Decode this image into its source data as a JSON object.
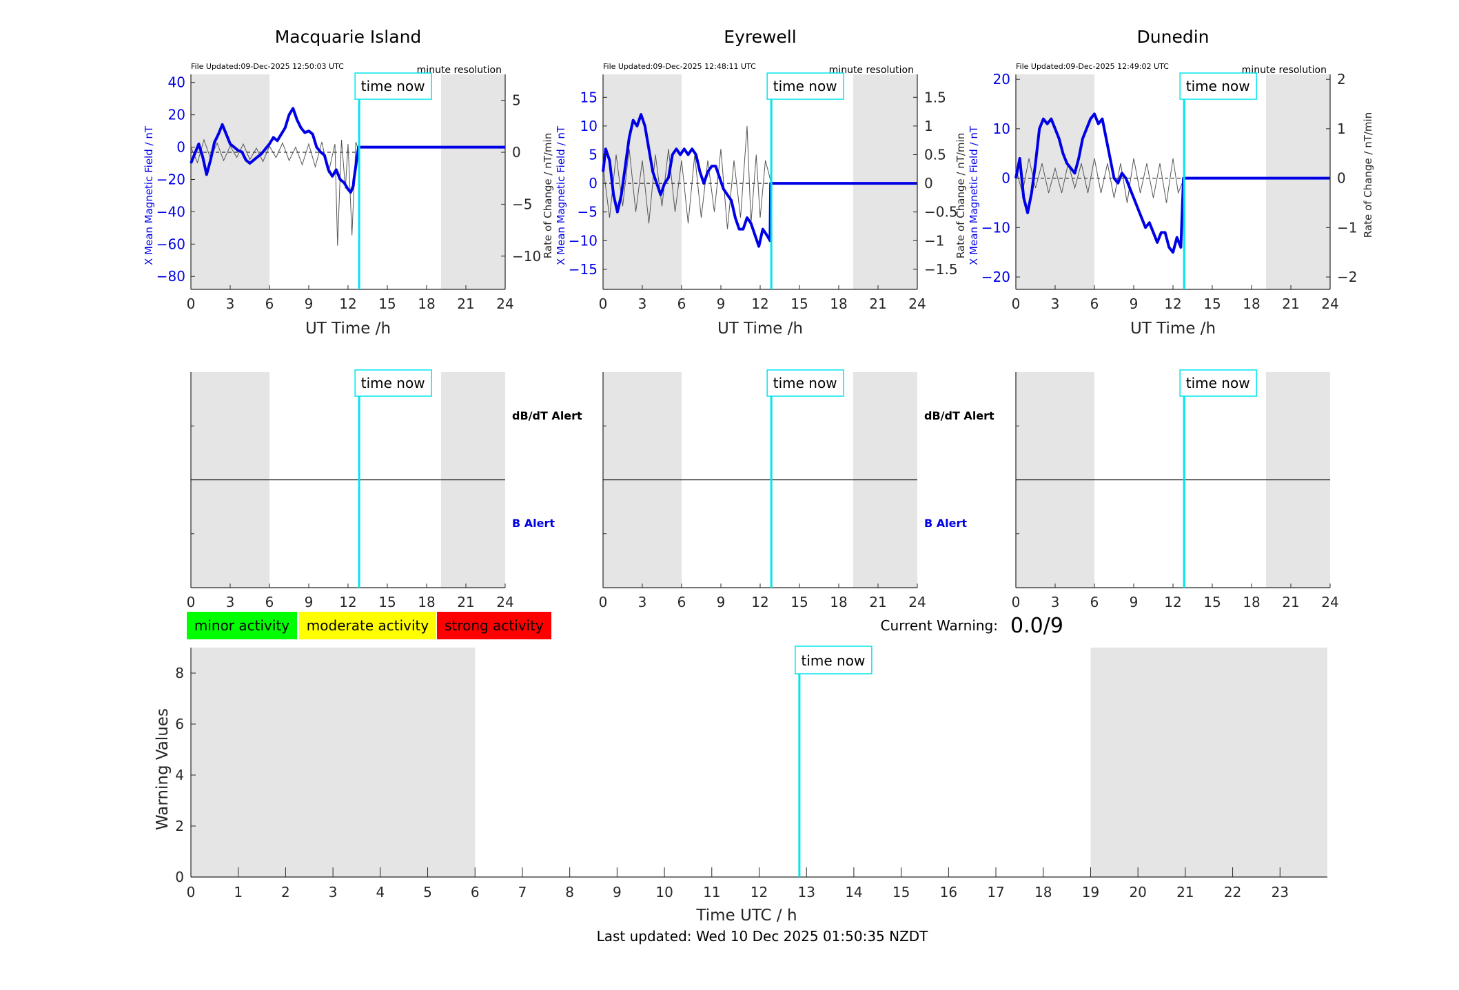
{
  "colors": {
    "series_b": "#0000e6",
    "series_rate": "#555555",
    "time_now": "#00e5ee",
    "night_shade": "#e5e5e5",
    "minor": "#00ff00",
    "moderate": "#ffff00",
    "strong": "#ff0000"
  },
  "chart_data": [
    {
      "type": "line",
      "title": "Macquarie Island",
      "updated": "File Updated:09-Dec-2025 12:50:03 UTC",
      "resolution": "minute resolution",
      "xlabel": "UT Time /h",
      "ylabel_left": "X Mean Magnetic Field / nT",
      "ylabel_right": "",
      "xlim": [
        0,
        24
      ],
      "xticks": [
        0,
        3,
        6,
        9,
        12,
        15,
        18,
        21,
        24
      ],
      "ylim_left": [
        -88,
        45
      ],
      "yticks_left": [
        40,
        20,
        0,
        -20,
        -40,
        -60,
        -80
      ],
      "ylim_right": [
        -13.2,
        7.5
      ],
      "yticks_right": [
        5,
        0,
        -5,
        -10
      ],
      "night": [
        [
          0,
          6
        ],
        [
          19.1,
          24
        ]
      ],
      "time_now": 12.85,
      "time_now_label": "time now",
      "series": [
        {
          "kind": "field",
          "x": [
            0,
            0.3,
            0.6,
            0.9,
            1.2,
            1.5,
            1.8,
            2.1,
            2.4,
            2.7,
            3.0,
            3.3,
            3.6,
            3.9,
            4.2,
            4.5,
            4.8,
            5.1,
            5.4,
            5.7,
            6.0,
            6.3,
            6.6,
            6.9,
            7.2,
            7.5,
            7.8,
            8.1,
            8.4,
            8.7,
            9.0,
            9.3,
            9.6,
            9.9,
            10.2,
            10.5,
            10.8,
            11.1,
            11.4,
            11.7,
            12.0,
            12.2,
            12.4,
            12.45,
            12.8,
            24
          ],
          "values": [
            -10,
            -4,
            2,
            -6,
            -17,
            -8,
            3,
            8,
            14,
            8,
            2,
            0,
            -2,
            -3,
            -8,
            -10,
            -8,
            -6,
            -4,
            -1,
            2,
            6,
            4,
            8,
            12,
            20,
            24,
            17,
            12,
            9,
            10,
            8,
            0,
            -3,
            -5,
            -14,
            -18,
            -14,
            -20,
            -22,
            -26,
            -28,
            -24,
            -20,
            0,
            0
          ]
        },
        {
          "kind": "rate",
          "x": [
            0,
            0.5,
            1,
            1.5,
            2,
            2.5,
            3,
            3.5,
            4,
            4.5,
            5,
            5.5,
            6,
            6.5,
            7,
            7.5,
            8,
            8.5,
            9,
            9.5,
            10,
            10.5,
            11,
            11.2,
            11.5,
            11.8,
            12,
            12.3,
            12.6,
            12.85
          ],
          "values": [
            0.5,
            -1,
            1.2,
            -0.6,
            0.9,
            -0.8,
            0.6,
            -0.5,
            0.8,
            -0.7,
            0.4,
            -0.9,
            0.6,
            -0.5,
            0.9,
            -0.8,
            0.5,
            -1.2,
            0.8,
            -1.4,
            1.0,
            -2.0,
            0.8,
            -9.0,
            1.2,
            -3.5,
            0.8,
            -8.0,
            1.0,
            0
          ]
        }
      ]
    },
    {
      "type": "line",
      "title": "Eyrewell",
      "updated": "File Updated:09-Dec-2025 12:48:11 UTC",
      "resolution": "minute resolution",
      "xlabel": "UT Time /h",
      "ylabel_left": "X Mean Magnetic Field / nT",
      "ylabel_right": "Rate of Change / nT/min",
      "xlim": [
        0,
        24
      ],
      "xticks": [
        0,
        3,
        6,
        9,
        12,
        15,
        18,
        21,
        24
      ],
      "ylim_left": [
        -18.5,
        19
      ],
      "yticks_left": [
        15,
        10,
        5,
        0,
        -5,
        -10,
        -15
      ],
      "ylim_right": [
        -1.85,
        1.9
      ],
      "yticks_right": [
        1.5,
        1,
        0.5,
        0,
        -0.5,
        -1,
        -1.5
      ],
      "night": [
        [
          0,
          6
        ],
        [
          19.1,
          24
        ]
      ],
      "time_now": 12.85,
      "time_now_label": "time now",
      "series": [
        {
          "kind": "field",
          "x": [
            0,
            0.2,
            0.5,
            0.8,
            1.1,
            1.4,
            1.7,
            2.0,
            2.3,
            2.6,
            2.9,
            3.2,
            3.5,
            3.8,
            4.1,
            4.4,
            4.7,
            5.0,
            5.3,
            5.6,
            5.9,
            6.2,
            6.5,
            6.8,
            7.1,
            7.4,
            7.7,
            8.0,
            8.3,
            8.6,
            8.9,
            9.2,
            9.5,
            9.8,
            10.1,
            10.4,
            10.7,
            11.0,
            11.3,
            11.6,
            11.9,
            12.2,
            12.5,
            12.75,
            12.8,
            24
          ],
          "values": [
            2,
            6,
            4,
            -2,
            -5,
            -2,
            3,
            8,
            11,
            10,
            12,
            10,
            6,
            2,
            0,
            -2,
            0,
            1,
            5,
            6,
            5,
            6,
            5,
            6,
            5,
            2,
            0,
            2,
            3,
            3,
            1,
            -1,
            -2,
            -3,
            -6,
            -8,
            -8,
            -6,
            -7,
            -9,
            -11,
            -8,
            -9,
            -10,
            0,
            0
          ]
        },
        {
          "kind": "rate",
          "x": [
            0,
            0.5,
            1,
            1.5,
            2,
            2.5,
            3,
            3.5,
            4,
            4.5,
            5,
            5.5,
            6,
            6.5,
            7,
            7.5,
            8,
            8.5,
            9,
            9.5,
            10,
            10.5,
            11,
            11.3,
            11.7,
            12,
            12.4,
            12.85
          ],
          "values": [
            0.3,
            -0.6,
            0.5,
            -0.4,
            0.6,
            -0.5,
            0.4,
            -0.7,
            0.5,
            -0.4,
            0.6,
            -0.5,
            0.4,
            -0.7,
            0.5,
            -0.6,
            0.4,
            -0.5,
            0.6,
            -0.8,
            0.4,
            -0.6,
            1.0,
            -0.7,
            0.5,
            -0.6,
            0.4,
            0
          ]
        }
      ]
    },
    {
      "type": "line",
      "title": "Dunedin",
      "updated": "File Updated:09-Dec-2025 12:49:02 UTC",
      "resolution": "minute resolution",
      "xlabel": "UT Time /h",
      "ylabel_left": "X Mean Magnetic Field / nT",
      "ylabel_right": "Rate of Change / nT/min",
      "xlim": [
        0,
        24
      ],
      "xticks": [
        0,
        3,
        6,
        9,
        12,
        15,
        18,
        21,
        24
      ],
      "ylim_left": [
        -22.5,
        21
      ],
      "yticks_left": [
        20,
        10,
        0,
        -10,
        -20
      ],
      "ylim_right": [
        -2.25,
        2.1
      ],
      "yticks_right": [
        2,
        1,
        0,
        -1,
        -2
      ],
      "night": [
        [
          0,
          6
        ],
        [
          19.1,
          24
        ]
      ],
      "time_now": 12.85,
      "time_now_label": "time now",
      "series": [
        {
          "kind": "field",
          "x": [
            0,
            0.3,
            0.6,
            0.9,
            1.2,
            1.5,
            1.8,
            2.1,
            2.4,
            2.7,
            3.0,
            3.3,
            3.6,
            3.9,
            4.2,
            4.5,
            4.8,
            5.1,
            5.4,
            5.7,
            6.0,
            6.3,
            6.6,
            6.9,
            7.2,
            7.5,
            7.8,
            8.1,
            8.4,
            8.7,
            9.0,
            9.3,
            9.6,
            9.9,
            10.2,
            10.5,
            10.8,
            11.1,
            11.4,
            11.7,
            12.0,
            12.3,
            12.6,
            12.8,
            24
          ],
          "values": [
            0,
            4,
            -4,
            -7,
            -3,
            3,
            10,
            12,
            11,
            12,
            10,
            8,
            5,
            3,
            2,
            1,
            4,
            8,
            10,
            12,
            13,
            11,
            12,
            8,
            4,
            0,
            -1,
            1,
            0,
            -2,
            -4,
            -6,
            -8,
            -10,
            -9,
            -11,
            -13,
            -11,
            -11,
            -14,
            -15,
            -12,
            -14,
            0,
            0
          ]
        },
        {
          "kind": "rate",
          "x": [
            0,
            0.5,
            1,
            1.5,
            2,
            2.5,
            3,
            3.5,
            4,
            4.5,
            5,
            5.5,
            6,
            6.5,
            7,
            7.5,
            8,
            8.5,
            9,
            9.5,
            10,
            10.5,
            11,
            11.5,
            12,
            12.4,
            12.85
          ],
          "values": [
            0.2,
            -0.3,
            0.4,
            -0.2,
            0.3,
            -0.3,
            0.2,
            -0.3,
            0.3,
            -0.2,
            0.3,
            -0.3,
            0.4,
            -0.3,
            0.3,
            -0.4,
            0.3,
            -0.5,
            0.4,
            -0.3,
            0.3,
            -0.4,
            0.3,
            -0.5,
            0.4,
            -0.3,
            0
          ]
        }
      ]
    },
    {
      "type": "line",
      "title": "",
      "xlim": [
        0,
        24
      ],
      "xticks": [
        0,
        3,
        6,
        9,
        12,
        15,
        18,
        21,
        24
      ],
      "night": [
        [
          0,
          6
        ],
        [
          19.1,
          24
        ]
      ],
      "time_now": 12.85,
      "time_now_label": "time now",
      "label_top": "dB/dT Alert",
      "label_bottom": "B Alert"
    },
    {
      "type": "line",
      "title": "",
      "xlim": [
        0,
        24
      ],
      "xticks": [
        0,
        3,
        6,
        9,
        12,
        15,
        18,
        21,
        24
      ],
      "night": [
        [
          0,
          6
        ],
        [
          19.1,
          24
        ]
      ],
      "time_now": 12.85,
      "time_now_label": "time now",
      "label_top": "dB/dT Alert",
      "label_bottom": "B Alert"
    },
    {
      "type": "line",
      "title": "",
      "xlim": [
        0,
        24
      ],
      "xticks": [
        0,
        3,
        6,
        9,
        12,
        15,
        18,
        21,
        24
      ],
      "night": [
        [
          0,
          6
        ],
        [
          19.1,
          24
        ]
      ],
      "time_now": 12.85,
      "time_now_label": "time now"
    },
    {
      "type": "bar",
      "title": "",
      "xlabel": "Time UTC / h",
      "ylabel": "Warning Values",
      "xlim": [
        0,
        24
      ],
      "xticks": [
        0,
        1,
        2,
        3,
        4,
        5,
        6,
        7,
        8,
        9,
        10,
        11,
        12,
        13,
        14,
        15,
        16,
        17,
        18,
        19,
        20,
        21,
        22,
        23
      ],
      "ylim": [
        0,
        9
      ],
      "yticks": [
        0,
        2,
        4,
        6,
        8
      ],
      "night": [
        [
          0,
          6
        ],
        [
          19,
          24
        ]
      ],
      "time_now": 12.85,
      "time_now_label": "time now",
      "values": []
    }
  ],
  "legend": {
    "minor": "minor activity",
    "moderate": "moderate activity",
    "strong": "strong activity"
  },
  "warning": {
    "label": "Current Warning:",
    "value": "0.0/9"
  },
  "footer": "Last updated: Wed 10 Dec 2025 01:50:35 NZDT"
}
